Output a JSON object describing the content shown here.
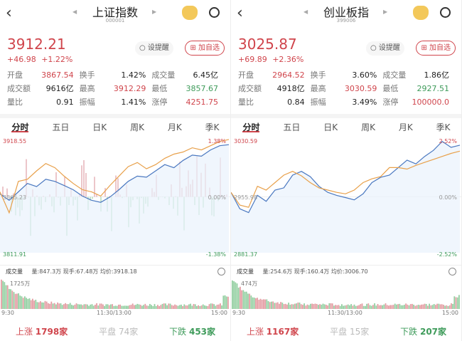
{
  "panels": [
    {
      "title": "上证指数",
      "code": "000001",
      "price": "3912.21",
      "change": "+46.98",
      "change_pct": "+1.22%",
      "alert_label": "设提醒",
      "add_label": "加自选",
      "stats": [
        [
          "开盘",
          "3867.54",
          "red"
        ],
        [
          "换手",
          "1.42%",
          "dark"
        ],
        [
          "成交量",
          "6.45亿",
          "dark"
        ],
        [
          "成交额",
          "9616亿",
          "dark"
        ],
        [
          "最高",
          "3912.29",
          "red"
        ],
        [
          "最低",
          "3857.67",
          "green"
        ],
        [
          "量比",
          "0.91",
          "dark"
        ],
        [
          "振幅",
          "1.41%",
          "dark"
        ],
        [
          "涨停",
          "4251.75",
          "red"
        ]
      ],
      "tabs": [
        "分时",
        "五日",
        "日K",
        "周K",
        "月K",
        "季K"
      ],
      "chart_top": "3918.55",
      "chart_mid": "3865.23",
      "chart_bottom": "3811.91",
      "pct_top": "1.38%",
      "pct_mid": "0.00%",
      "pct_bottom": "-1.38%",
      "vol_label": "成交量",
      "vol_info": [
        "量:847.3万",
        "现手:67.48万",
        "均价:3918.18"
      ],
      "vol_max": "1725万",
      "times": [
        "9:30",
        "11:30/13:00",
        "15:00"
      ],
      "up": "上涨",
      "up_count": "1798家",
      "flat": "平盘",
      "flat_count": "74家",
      "down": "下跌",
      "down_count": "453家"
    },
    {
      "title": "创业板指",
      "code": "399006",
      "price": "3025.87",
      "change": "+69.89",
      "change_pct": "+2.36%",
      "alert_label": "设提醒",
      "add_label": "加自选",
      "stats": [
        [
          "开盘",
          "2964.52",
          "red"
        ],
        [
          "换手",
          "3.60%",
          "dark"
        ],
        [
          "成交量",
          "1.86亿",
          "dark"
        ],
        [
          "成交额",
          "4918亿",
          "dark"
        ],
        [
          "最高",
          "3030.59",
          "red"
        ],
        [
          "最低",
          "2927.51",
          "green"
        ],
        [
          "量比",
          "0.84",
          "dark"
        ],
        [
          "振幅",
          "3.49%",
          "dark"
        ],
        [
          "涨停",
          "100000.0",
          "red"
        ]
      ],
      "tabs": [
        "分时",
        "五日",
        "日K",
        "周K",
        "月K",
        "季K"
      ],
      "chart_top": "3030.59",
      "chart_mid": "2955.98",
      "chart_bottom": "2881.37",
      "pct_top": "2.52%",
      "pct_mid": "0.00%",
      "pct_bottom": "-2.52%",
      "vol_label": "成交量",
      "vol_info": [
        "量:254.6万",
        "现手:160.4万",
        "均价:3006.70"
      ],
      "vol_max": "474万",
      "times": [
        "9:30",
        "11:30/13:00",
        "15:00"
      ],
      "up": "上涨",
      "up_count": "1167家",
      "flat": "平盘",
      "flat_count": "15家",
      "down": "下跌",
      "down_count": "207家"
    }
  ],
  "colors": {
    "up": "#d0454c",
    "down": "#3e9b5a",
    "price_line": "#4a78c0",
    "avg_line": "#e8a04a"
  },
  "chart_data": [
    {
      "type": "line",
      "ylim": [
        3811.91,
        3918.55
      ],
      "series": [
        {
          "values": [
            3868,
            3862,
            3870,
            3878,
            3875,
            3882,
            3880,
            3876,
            3872,
            3866,
            3862,
            3860,
            3865,
            3872,
            3880,
            3885,
            3884,
            3890,
            3896,
            3893,
            3900,
            3905,
            3904,
            3910,
            3914,
            3915
          ]
        },
        {
          "values": [
            3870,
            3850,
            3880,
            3882,
            3890,
            3897,
            3893,
            3885,
            3878,
            3872,
            3870,
            3866,
            3876,
            3885,
            3894,
            3898,
            3892,
            3896,
            3902,
            3906,
            3908,
            3912,
            3910,
            3914,
            3918,
            3920
          ]
        }
      ]
    },
    {
      "type": "line",
      "ylim": [
        2881.37,
        3030.59
      ],
      "series": [
        {
          "values": [
            2962,
            2940,
            2935,
            2958,
            2950,
            2965,
            2968,
            2985,
            2990,
            2983,
            2970,
            2962,
            2958,
            2955,
            2952,
            2960,
            2975,
            2982,
            2985,
            2995,
            3005,
            3000,
            3010,
            3018,
            3030,
            3022,
            3025
          ]
        },
        {
          "values": [
            2962,
            2945,
            2942,
            2970,
            2965,
            2975,
            2985,
            2990,
            2984,
            2975,
            2968,
            2965,
            2962,
            2960,
            2965,
            2975,
            2980,
            2983,
            2995,
            2995,
            2993,
            2998,
            3002,
            3006,
            3010,
            3014,
            3017
          ]
        }
      ]
    }
  ]
}
